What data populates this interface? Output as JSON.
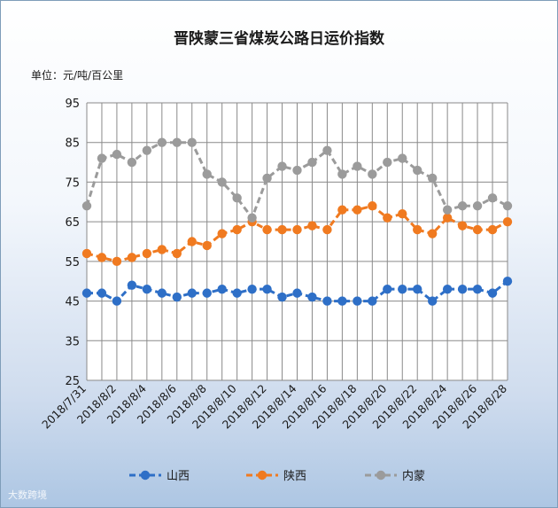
{
  "chart_data": {
    "type": "line",
    "title": "晋陕蒙三省煤炭公路日运价指数",
    "unit_label": "单位：元/吨/百公里",
    "ylim": [
      25,
      95
    ],
    "yticks": [
      25,
      35,
      45,
      55,
      65,
      75,
      85,
      95
    ],
    "grid": true,
    "legend_position": "bottom",
    "x": [
      "2018/7/31",
      "2018/8/1",
      "2018/8/2",
      "2018/8/3",
      "2018/8/4",
      "2018/8/5",
      "2018/8/6",
      "2018/8/7",
      "2018/8/8",
      "2018/8/9",
      "2018/8/10",
      "2018/8/11",
      "2018/8/12",
      "2018/8/13",
      "2018/8/14",
      "2018/8/15",
      "2018/8/16",
      "2018/8/17",
      "2018/8/18",
      "2018/8/19",
      "2018/8/20",
      "2018/8/21",
      "2018/8/22",
      "2018/8/23",
      "2018/8/24",
      "2018/8/25",
      "2018/8/26",
      "2018/8/27",
      "2018/8/28"
    ],
    "xtick_labels": [
      "2018/7/31",
      "2018/8/2",
      "2018/8/4",
      "2018/8/6",
      "2018/8/8",
      "2018/8/10",
      "2018/8/12",
      "2018/8/14",
      "2018/8/16",
      "2018/8/18",
      "2018/8/20",
      "2018/8/22",
      "2018/8/24",
      "2018/8/26",
      "2018/8/28"
    ],
    "series": [
      {
        "name": "山西",
        "color": "#2e6fc7",
        "values": [
          47,
          47,
          45,
          49,
          48,
          47,
          46,
          47,
          47,
          48,
          47,
          48,
          48,
          46,
          47,
          46,
          45,
          45,
          45,
          45,
          48,
          48,
          48,
          45,
          48,
          48,
          48,
          47,
          50
        ]
      },
      {
        "name": "陕西",
        "color": "#f07a20",
        "values": [
          57,
          56,
          55,
          56,
          57,
          58,
          57,
          60,
          59,
          62,
          63,
          65,
          63,
          63,
          63,
          64,
          63,
          68,
          68,
          69,
          66,
          67,
          63,
          62,
          66,
          64,
          63,
          63,
          65
        ]
      },
      {
        "name": "内蒙",
        "color": "#9b9b9b",
        "values": [
          69,
          81,
          82,
          80,
          83,
          85,
          85,
          85,
          77,
          75,
          71,
          66,
          76,
          79,
          78,
          80,
          83,
          77,
          79,
          77,
          80,
          81,
          78,
          76,
          68,
          69,
          69,
          71,
          69
        ]
      }
    ]
  },
  "watermark": "大数跨境"
}
